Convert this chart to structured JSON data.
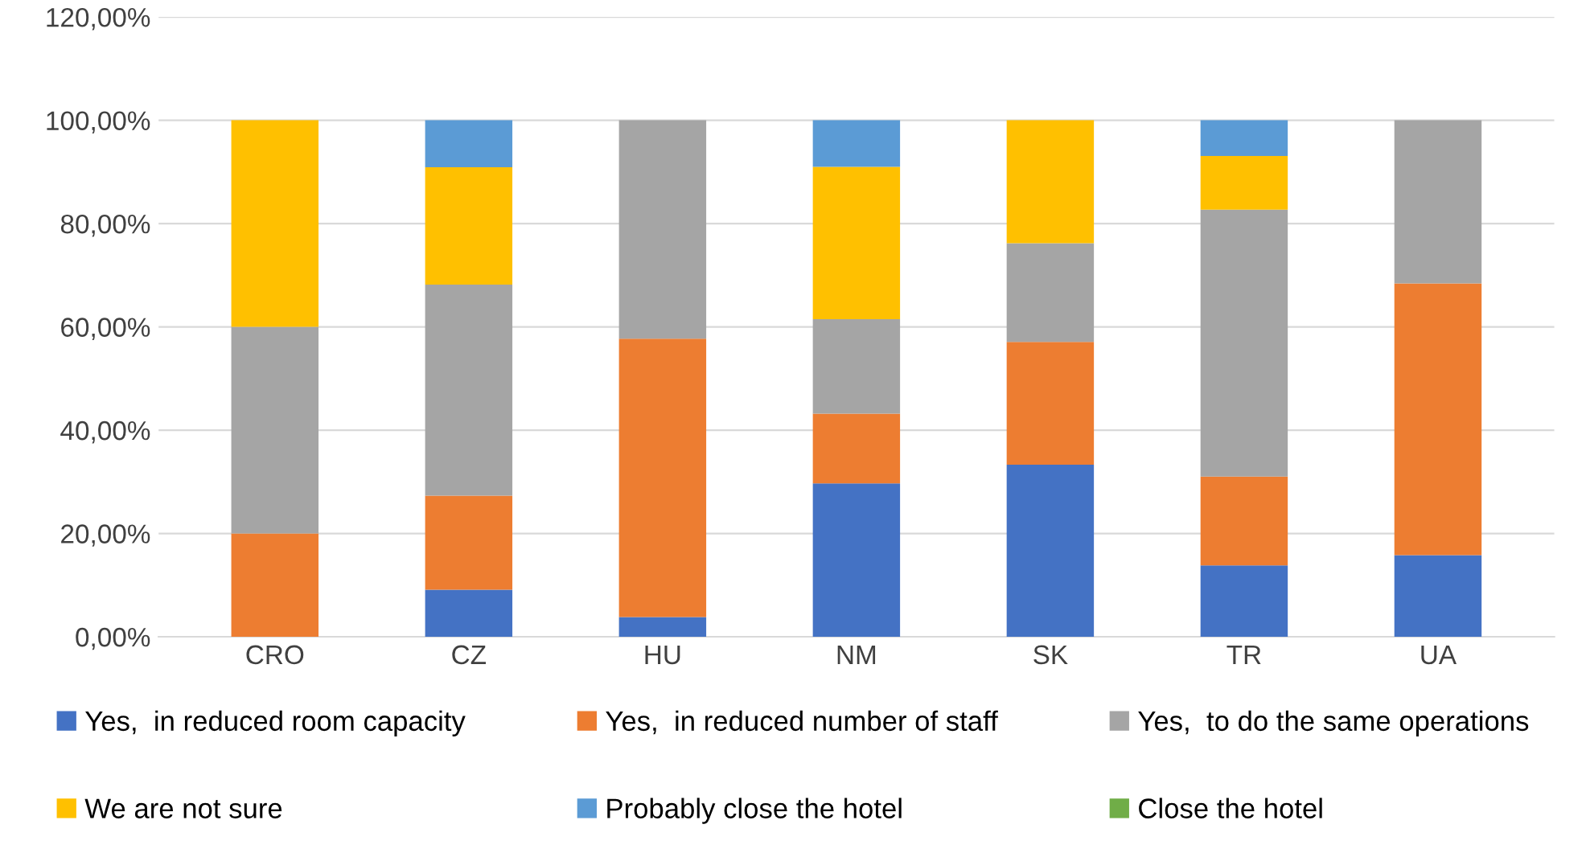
{
  "chart_data": {
    "type": "bar",
    "stacked": true,
    "categories": [
      "CRO",
      "CZ",
      "HU",
      "NM",
      "SK",
      "TR",
      "UA"
    ],
    "series": [
      {
        "name": "Yes,  in reduced room capacity",
        "color": "#4472c4",
        "values": [
          0,
          9.1,
          3.8,
          29.7,
          33.3,
          13.8,
          15.8
        ]
      },
      {
        "name": "Yes,  in reduced number of staff",
        "color": "#ed7d31",
        "values": [
          20,
          18.2,
          53.9,
          13.5,
          23.8,
          17.2,
          52.6
        ]
      },
      {
        "name": "Yes,  to do the same operations",
        "color": "#a5a5a5",
        "values": [
          40,
          40.9,
          42.3,
          18.3,
          19.1,
          51.7,
          31.6
        ]
      },
      {
        "name": "We are not sure",
        "color": "#ffc000",
        "values": [
          40,
          22.7,
          0,
          29.5,
          23.8,
          10.4,
          0
        ]
      },
      {
        "name": "Probably close the hotel",
        "color": "#5b9bd5",
        "values": [
          0,
          9.1,
          0,
          9,
          0,
          6.9,
          0
        ]
      },
      {
        "name": "Close the hotel",
        "color": "#70ad47",
        "values": [
          0,
          0,
          0,
          0,
          0,
          0,
          0
        ]
      }
    ],
    "ylim": [
      0,
      120
    ],
    "yticks": [
      {
        "value": 0,
        "label": "0,00%"
      },
      {
        "value": 20,
        "label": "20,00%"
      },
      {
        "value": 40,
        "label": "40,00%"
      },
      {
        "value": 60,
        "label": "60,00%"
      },
      {
        "value": 80,
        "label": "80,00%"
      },
      {
        "value": 100,
        "label": "100,00%"
      },
      {
        "value": 120,
        "label": "120,00%"
      }
    ],
    "grid": "y",
    "legend": "bottom"
  }
}
